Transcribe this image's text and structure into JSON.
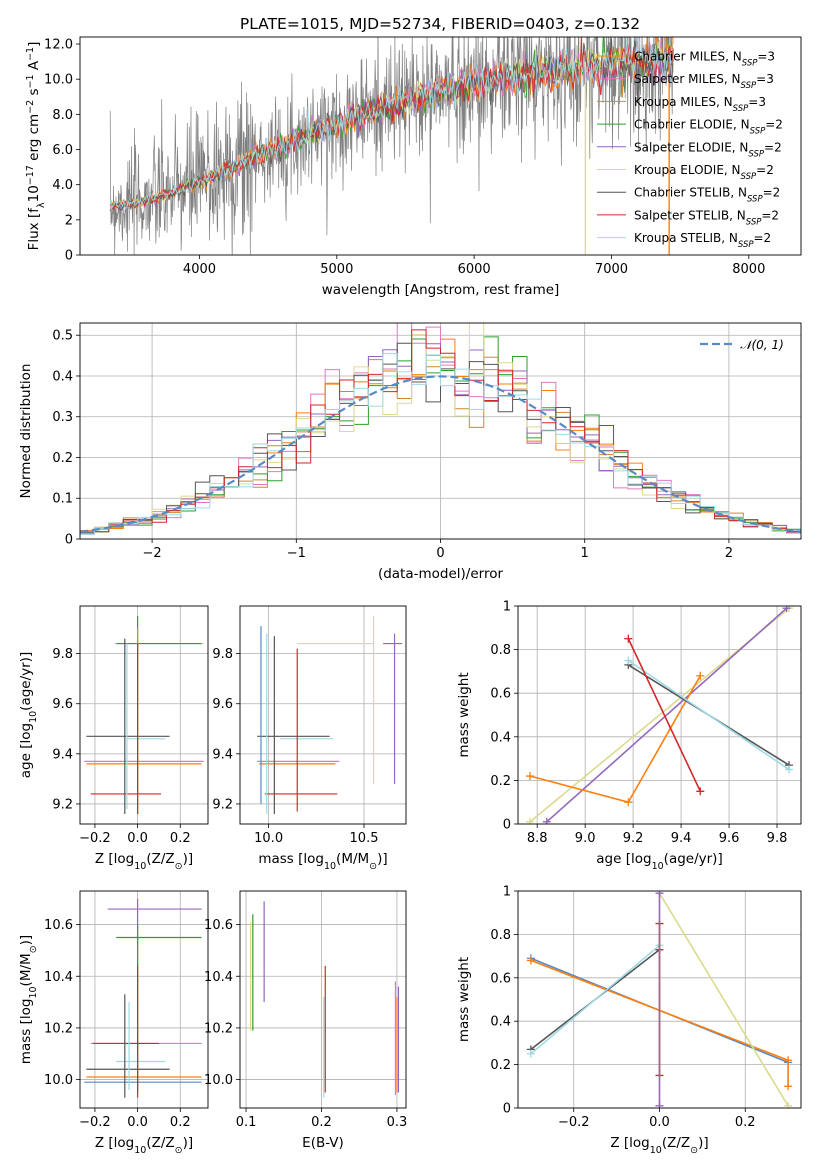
{
  "title": "PLATE=1015, MJD=52734, FIBERID=0403, z=0.132",
  "models": [
    {
      "name": "Chabrier MILES",
      "nssp": 3,
      "color": "#ff7f0e"
    },
    {
      "name": "Salpeter MILES",
      "nssp": 3,
      "color": "#e377c2"
    },
    {
      "name": "Kroupa MILES",
      "nssp": 3,
      "color": "#d2872b"
    },
    {
      "name": "Chabrier ELODIE",
      "nssp": 2,
      "color": "#2ca02c"
    },
    {
      "name": "Salpeter ELODIE",
      "nssp": 2,
      "color": "#9467bd"
    },
    {
      "name": "Kroupa ELODIE",
      "nssp": 2,
      "color": "#dbdb8d"
    },
    {
      "name": "Chabrier STELIB",
      "nssp": 2,
      "color": "#555555"
    },
    {
      "name": "Salpeter STELIB",
      "nssp": 2,
      "color": "#d62728"
    },
    {
      "name": "Kroupa STELIB",
      "nssp": 2,
      "color": "#9edae5"
    }
  ],
  "legend_prefix": "N",
  "legend_sub": "SSP",
  "normal_legend": "𝒩(0, 1)",
  "chart_data": [
    {
      "id": "spectrum",
      "type": "line",
      "xlabel": "wavelength [Angstrom, rest frame]",
      "ylabel_parts": [
        "Flux [f",
        "λ",
        "10",
        "−17",
        " erg cm",
        "−2",
        " s",
        "−1",
        " A",
        "−1",
        "]"
      ],
      "xlim": [
        3130,
        8380
      ],
      "ylim": [
        0,
        12.4
      ],
      "xticks": [
        4000,
        5000,
        6000,
        7000,
        8000
      ],
      "yticks": [
        0,
        2,
        4,
        6,
        8,
        10,
        12
      ],
      "data_color": "#808080",
      "continuum": [
        [
          3350,
          2.8
        ],
        [
          3500,
          2.9
        ],
        [
          3700,
          3.3
        ],
        [
          3900,
          3.8
        ],
        [
          4100,
          4.5
        ],
        [
          4300,
          5.2
        ],
        [
          4500,
          5.9
        ],
        [
          4700,
          6.5
        ],
        [
          4900,
          7.2
        ],
        [
          5100,
          7.8
        ],
        [
          5300,
          8.3
        ],
        [
          5500,
          8.8
        ],
        [
          5700,
          9.2
        ],
        [
          5900,
          9.6
        ],
        [
          6100,
          9.9
        ],
        [
          6300,
          10.1
        ],
        [
          6500,
          10.4
        ],
        [
          6700,
          10.6
        ],
        [
          6900,
          10.8
        ],
        [
          7100,
          11.0
        ],
        [
          7300,
          11.1
        ],
        [
          7450,
          11.2
        ]
      ]
    },
    {
      "id": "residuals",
      "type": "line",
      "xlabel": "(data-model)/error",
      "ylabel": "Normed distribution",
      "xlim": [
        -2.5,
        2.5
      ],
      "ylim": [
        0,
        0.53
      ],
      "xticks": [
        -2,
        -1,
        0,
        1,
        2
      ],
      "yticks": [
        0.0,
        0.1,
        0.2,
        0.3,
        0.4,
        0.5
      ],
      "grid": true
    },
    {
      "id": "z-vs-age",
      "type": "scatter",
      "xlabel_parts": [
        "Z [log",
        "10",
        "(Z/Z",
        "⊙",
        ")]"
      ],
      "ylabel_parts": [
        "age  [log",
        "10",
        "(age/yr)]"
      ],
      "xlim": [
        -0.27,
        0.33
      ],
      "ylim": [
        9.12,
        9.99
      ],
      "xticks": [
        -0.2,
        0.0,
        0.2
      ],
      "yticks": [
        9.2,
        9.4,
        9.6,
        9.8
      ],
      "xticklabels": [
        "−0.2",
        "0.0",
        "0.2"
      ],
      "grid": true,
      "hlines": [
        {
          "y": 9.84,
          "x0": -0.11,
          "x1": 0.31,
          "c": "#dbdb8d"
        },
        {
          "y": 9.84,
          "x0": -0.1,
          "x1": 0.3,
          "c": "#2ca02c"
        },
        {
          "y": 9.47,
          "x0": -0.24,
          "x1": 0.15,
          "c": "#555555"
        },
        {
          "y": 9.46,
          "x0": -0.05,
          "x1": 0.13,
          "c": "#9edae5"
        },
        {
          "y": 9.37,
          "x0": -0.25,
          "x1": 0.31,
          "c": "#e377c2"
        },
        {
          "y": 9.36,
          "x0": -0.24,
          "x1": 0.3,
          "c": "#ff7f0e"
        },
        {
          "y": 9.24,
          "x0": -0.22,
          "x1": 0.11,
          "c": "#d62728"
        }
      ],
      "vlines": [
        {
          "x": -0.06,
          "y0": 9.16,
          "y1": 9.86,
          "c": "#555555"
        },
        {
          "x": -0.05,
          "y0": 9.18,
          "y1": 9.84,
          "c": "#9edae5"
        },
        {
          "x": 0.0,
          "y0": 9.16,
          "y1": 9.95,
          "c": "#2ca02c"
        },
        {
          "x": 0.0,
          "y0": 9.17,
          "y1": 9.9,
          "c": "#ff7f0e"
        },
        {
          "x": 0.0,
          "y0": 9.16,
          "y1": 9.84,
          "c": "#d62728"
        }
      ]
    },
    {
      "id": "mass-vs-age",
      "type": "scatter",
      "xlabel_parts": [
        "mass [log",
        "10",
        "(M/M",
        "⊙",
        ")]"
      ],
      "xlim": [
        9.85,
        10.72
      ],
      "ylim": [
        9.12,
        9.99
      ],
      "xticks": [
        10.0,
        10.5
      ],
      "yticks": [
        9.2,
        9.4,
        9.6,
        9.8
      ],
      "grid": true,
      "hlines": [
        {
          "y": 9.84,
          "x0": 10.15,
          "x1": 10.55,
          "c": "#dbdb8d"
        },
        {
          "y": 9.84,
          "x0": 10.6,
          "x1": 10.7,
          "c": "#9467bd"
        },
        {
          "y": 9.47,
          "x0": 9.94,
          "x1": 10.32,
          "c": "#555555"
        },
        {
          "y": 9.46,
          "x0": 10.06,
          "x1": 10.34,
          "c": "#9edae5"
        },
        {
          "y": 9.37,
          "x0": 9.94,
          "x1": 10.37,
          "c": "#e377c2"
        },
        {
          "y": 9.36,
          "x0": 9.95,
          "x1": 10.35,
          "c": "#ff7f0e"
        },
        {
          "y": 9.24,
          "x0": 9.98,
          "x1": 10.36,
          "c": "#d62728"
        }
      ],
      "vlines": [
        {
          "x": 9.96,
          "y0": 9.2,
          "y1": 9.91,
          "c": "#5a8ac6"
        },
        {
          "x": 9.99,
          "y0": 9.16,
          "y1": 9.88,
          "c": "#9edae5"
        },
        {
          "x": 10.03,
          "y0": 9.16,
          "y1": 9.87,
          "c": "#555555"
        },
        {
          "x": 10.15,
          "y0": 9.17,
          "y1": 9.82,
          "c": "#d62728"
        },
        {
          "x": 10.55,
          "y0": 9.28,
          "y1": 9.95,
          "c": "#dbdb8d"
        },
        {
          "x": 10.66,
          "y0": 9.28,
          "y1": 9.88,
          "c": "#9467bd"
        }
      ]
    },
    {
      "id": "weight-vs-age",
      "type": "line",
      "xlabel_parts": [
        "age  [log",
        "10",
        "(age/yr)]"
      ],
      "ylabel": "mass weight",
      "xlim": [
        8.72,
        9.9
      ],
      "ylim": [
        0,
        1.0
      ],
      "xticks": [
        8.8,
        9.0,
        9.2,
        9.4,
        9.6,
        9.8
      ],
      "yticks": [
        0.0,
        0.2,
        0.4,
        0.6,
        0.8,
        1.0
      ],
      "grid": true,
      "series": [
        {
          "c": "#dbdb8d",
          "x": [
            8.77,
            9.85
          ],
          "y": [
            0.01,
            0.99
          ]
        },
        {
          "c": "#9467bd",
          "x": [
            8.84,
            9.84
          ],
          "y": [
            0.01,
            0.99
          ]
        },
        {
          "c": "#ff7f0e",
          "x": [
            8.77,
            9.18,
            9.48
          ],
          "y": [
            0.22,
            0.1,
            0.68
          ]
        },
        {
          "c": "#555555",
          "x": [
            9.18,
            9.85
          ],
          "y": [
            0.73,
            0.27
          ]
        },
        {
          "c": "#9edae5",
          "x": [
            9.18,
            9.85
          ],
          "y": [
            0.75,
            0.25
          ]
        },
        {
          "c": "#d62728",
          "x": [
            9.18,
            9.48
          ],
          "y": [
            0.85,
            0.15
          ]
        }
      ]
    },
    {
      "id": "z-vs-mass",
      "type": "scatter",
      "xlabel_parts": [
        "Z [log",
        "10",
        "(Z/Z",
        "⊙",
        ")]"
      ],
      "ylabel_parts": [
        "mass [log",
        "10",
        "(M/M",
        "⊙",
        ")]"
      ],
      "xlim": [
        -0.27,
        0.33
      ],
      "ylim": [
        9.89,
        10.73
      ],
      "xticks": [
        -0.2,
        0.0,
        0.2
      ],
      "yticks": [
        10.0,
        10.2,
        10.4,
        10.6
      ],
      "xticklabels": [
        "−0.2",
        "0.0",
        "0.2"
      ],
      "grid": true,
      "hlines": [
        {
          "y": 10.66,
          "x0": -0.14,
          "x1": 0.3,
          "c": "#9467bd"
        },
        {
          "y": 10.55,
          "x0": -0.1,
          "x1": 0.3,
          "c": "#2ca02c"
        },
        {
          "y": 10.14,
          "x0": -0.22,
          "x1": 0.3,
          "c": "#e377c2"
        },
        {
          "y": 10.14,
          "x0": -0.21,
          "x1": 0.1,
          "c": "#d62728"
        },
        {
          "y": 10.07,
          "x0": -0.1,
          "x1": 0.13,
          "c": "#9edae5"
        },
        {
          "y": 10.04,
          "x0": -0.24,
          "x1": 0.15,
          "c": "#555555"
        },
        {
          "y": 10.01,
          "x0": -0.24,
          "x1": 0.3,
          "c": "#ff7f0e"
        },
        {
          "y": 9.99,
          "x0": -0.25,
          "x1": 0.3,
          "c": "#5a8ac6"
        }
      ],
      "vlines": [
        {
          "x": -0.06,
          "y0": 9.93,
          "y1": 10.33,
          "c": "#555555"
        },
        {
          "x": -0.04,
          "y0": 9.96,
          "y1": 10.3,
          "c": "#9edae5"
        },
        {
          "x": 0.0,
          "y0": 9.95,
          "y1": 10.7,
          "c": "#9467bd"
        },
        {
          "x": 0.0,
          "y0": 9.95,
          "y1": 10.6,
          "c": "#2ca02c"
        },
        {
          "x": 0.0,
          "y0": 9.93,
          "y1": 10.44,
          "c": "#d62728"
        }
      ]
    },
    {
      "id": "ebv-vs-mass",
      "type": "scatter",
      "xlabel": "E(B-V)",
      "xlim": [
        0.092,
        0.312
      ],
      "ylim": [
        9.89,
        10.73
      ],
      "xticks": [
        0.1,
        0.2,
        0.3
      ],
      "yticks": [
        10.0,
        10.2,
        10.4,
        10.6
      ],
      "grid": true,
      "vlines": [
        {
          "x": 0.106,
          "y0": 10.19,
          "y1": 10.61,
          "c": "#dbdb8d"
        },
        {
          "x": 0.109,
          "y0": 10.19,
          "y1": 10.64,
          "c": "#2ca02c"
        },
        {
          "x": 0.124,
          "y0": 10.3,
          "y1": 10.69,
          "c": "#9467bd"
        },
        {
          "x": 0.203,
          "y0": 9.93,
          "y1": 10.32,
          "c": "#9edae5"
        },
        {
          "x": 0.205,
          "y0": 9.95,
          "y1": 10.44,
          "c": "#d62728"
        },
        {
          "x": 0.298,
          "y0": 9.94,
          "y1": 10.38,
          "c": "#e377c2"
        },
        {
          "x": 0.3,
          "y0": 9.95,
          "y1": 10.32,
          "c": "#ff7f0e"
        },
        {
          "x": 0.302,
          "y0": 9.95,
          "y1": 10.36,
          "c": "#9467bd"
        }
      ]
    },
    {
      "id": "weight-vs-z",
      "type": "line",
      "xlabel_parts": [
        "Z [log",
        "10",
        "(Z/Z",
        "⊙",
        ")]"
      ],
      "ylabel": "mass weight",
      "xlim": [
        -0.33,
        0.33
      ],
      "ylim": [
        0,
        1.0
      ],
      "xticks": [
        -0.2,
        0.0,
        0.2
      ],
      "yticks": [
        0.0,
        0.2,
        0.4,
        0.6,
        0.8,
        1.0
      ],
      "xticklabels": [
        "−0.2",
        "0.0",
        "0.2"
      ],
      "grid": true,
      "series": [
        {
          "c": "#5a8ac6",
          "x": [
            -0.3,
            0.3
          ],
          "y": [
            0.69,
            0.21
          ]
        },
        {
          "c": "#ff7f0e",
          "x": [
            -0.3,
            0.3,
            0.3
          ],
          "y": [
            0.68,
            0.22,
            0.1
          ]
        },
        {
          "c": "#555555",
          "x": [
            -0.3,
            0.0
          ],
          "y": [
            0.27,
            0.73
          ]
        },
        {
          "c": "#9edae5",
          "x": [
            -0.3,
            0.0
          ],
          "y": [
            0.25,
            0.75
          ]
        },
        {
          "c": "#dbdb8d",
          "x": [
            0.0,
            0.3
          ],
          "y": [
            0.99,
            0.01
          ]
        },
        {
          "c": "#d62728",
          "x": [
            0.0,
            0.0,
            0.0
          ],
          "y": [
            0.15,
            0.85,
            0.73
          ]
        },
        {
          "c": "#9467bd",
          "x": [
            0.0,
            0.0
          ],
          "y": [
            0.01,
            0.99
          ]
        }
      ]
    }
  ]
}
